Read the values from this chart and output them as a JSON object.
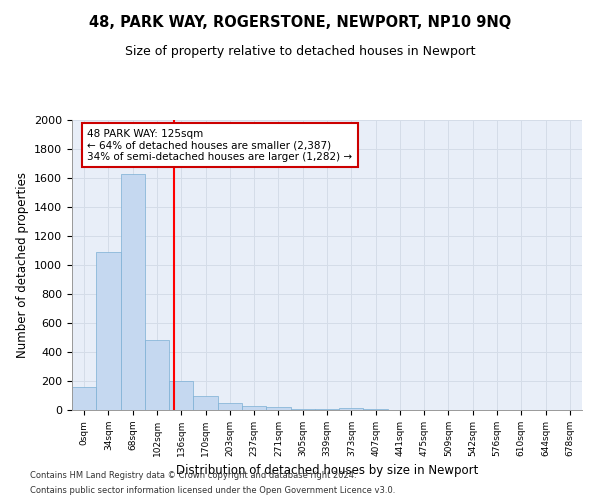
{
  "title": "48, PARK WAY, ROGERSTONE, NEWPORT, NP10 9NQ",
  "subtitle": "Size of property relative to detached houses in Newport",
  "xlabel": "Distribution of detached houses by size in Newport",
  "ylabel": "Number of detached properties",
  "footnote1": "Contains HM Land Registry data © Crown copyright and database right 2024.",
  "footnote2": "Contains public sector information licensed under the Open Government Licence v3.0.",
  "bar_labels": [
    "0sqm",
    "34sqm",
    "68sqm",
    "102sqm",
    "136sqm",
    "170sqm",
    "203sqm",
    "237sqm",
    "271sqm",
    "305sqm",
    "339sqm",
    "373sqm",
    "407sqm",
    "441sqm",
    "475sqm",
    "509sqm",
    "542sqm",
    "576sqm",
    "610sqm",
    "644sqm",
    "678sqm"
  ],
  "bar_values": [
    160,
    1090,
    1630,
    480,
    200,
    100,
    45,
    25,
    20,
    10,
    5,
    15,
    5,
    0,
    0,
    0,
    0,
    0,
    0,
    0,
    0
  ],
  "bar_color": "#c5d8f0",
  "bar_edgecolor": "#7bafd4",
  "grid_color": "#d4dce8",
  "background_color": "#e8eef8",
  "red_line_x": 3.68,
  "annotation_text_line1": "48 PARK WAY: 125sqm",
  "annotation_text_line2": "← 64% of detached houses are smaller (2,387)",
  "annotation_text_line3": "34% of semi-detached houses are larger (1,282) →",
  "annotation_box_color": "#ffffff",
  "annotation_box_edgecolor": "#cc0000",
  "ylim": [
    0,
    2000
  ],
  "yticks": [
    0,
    200,
    400,
    600,
    800,
    1000,
    1200,
    1400,
    1600,
    1800,
    2000
  ]
}
